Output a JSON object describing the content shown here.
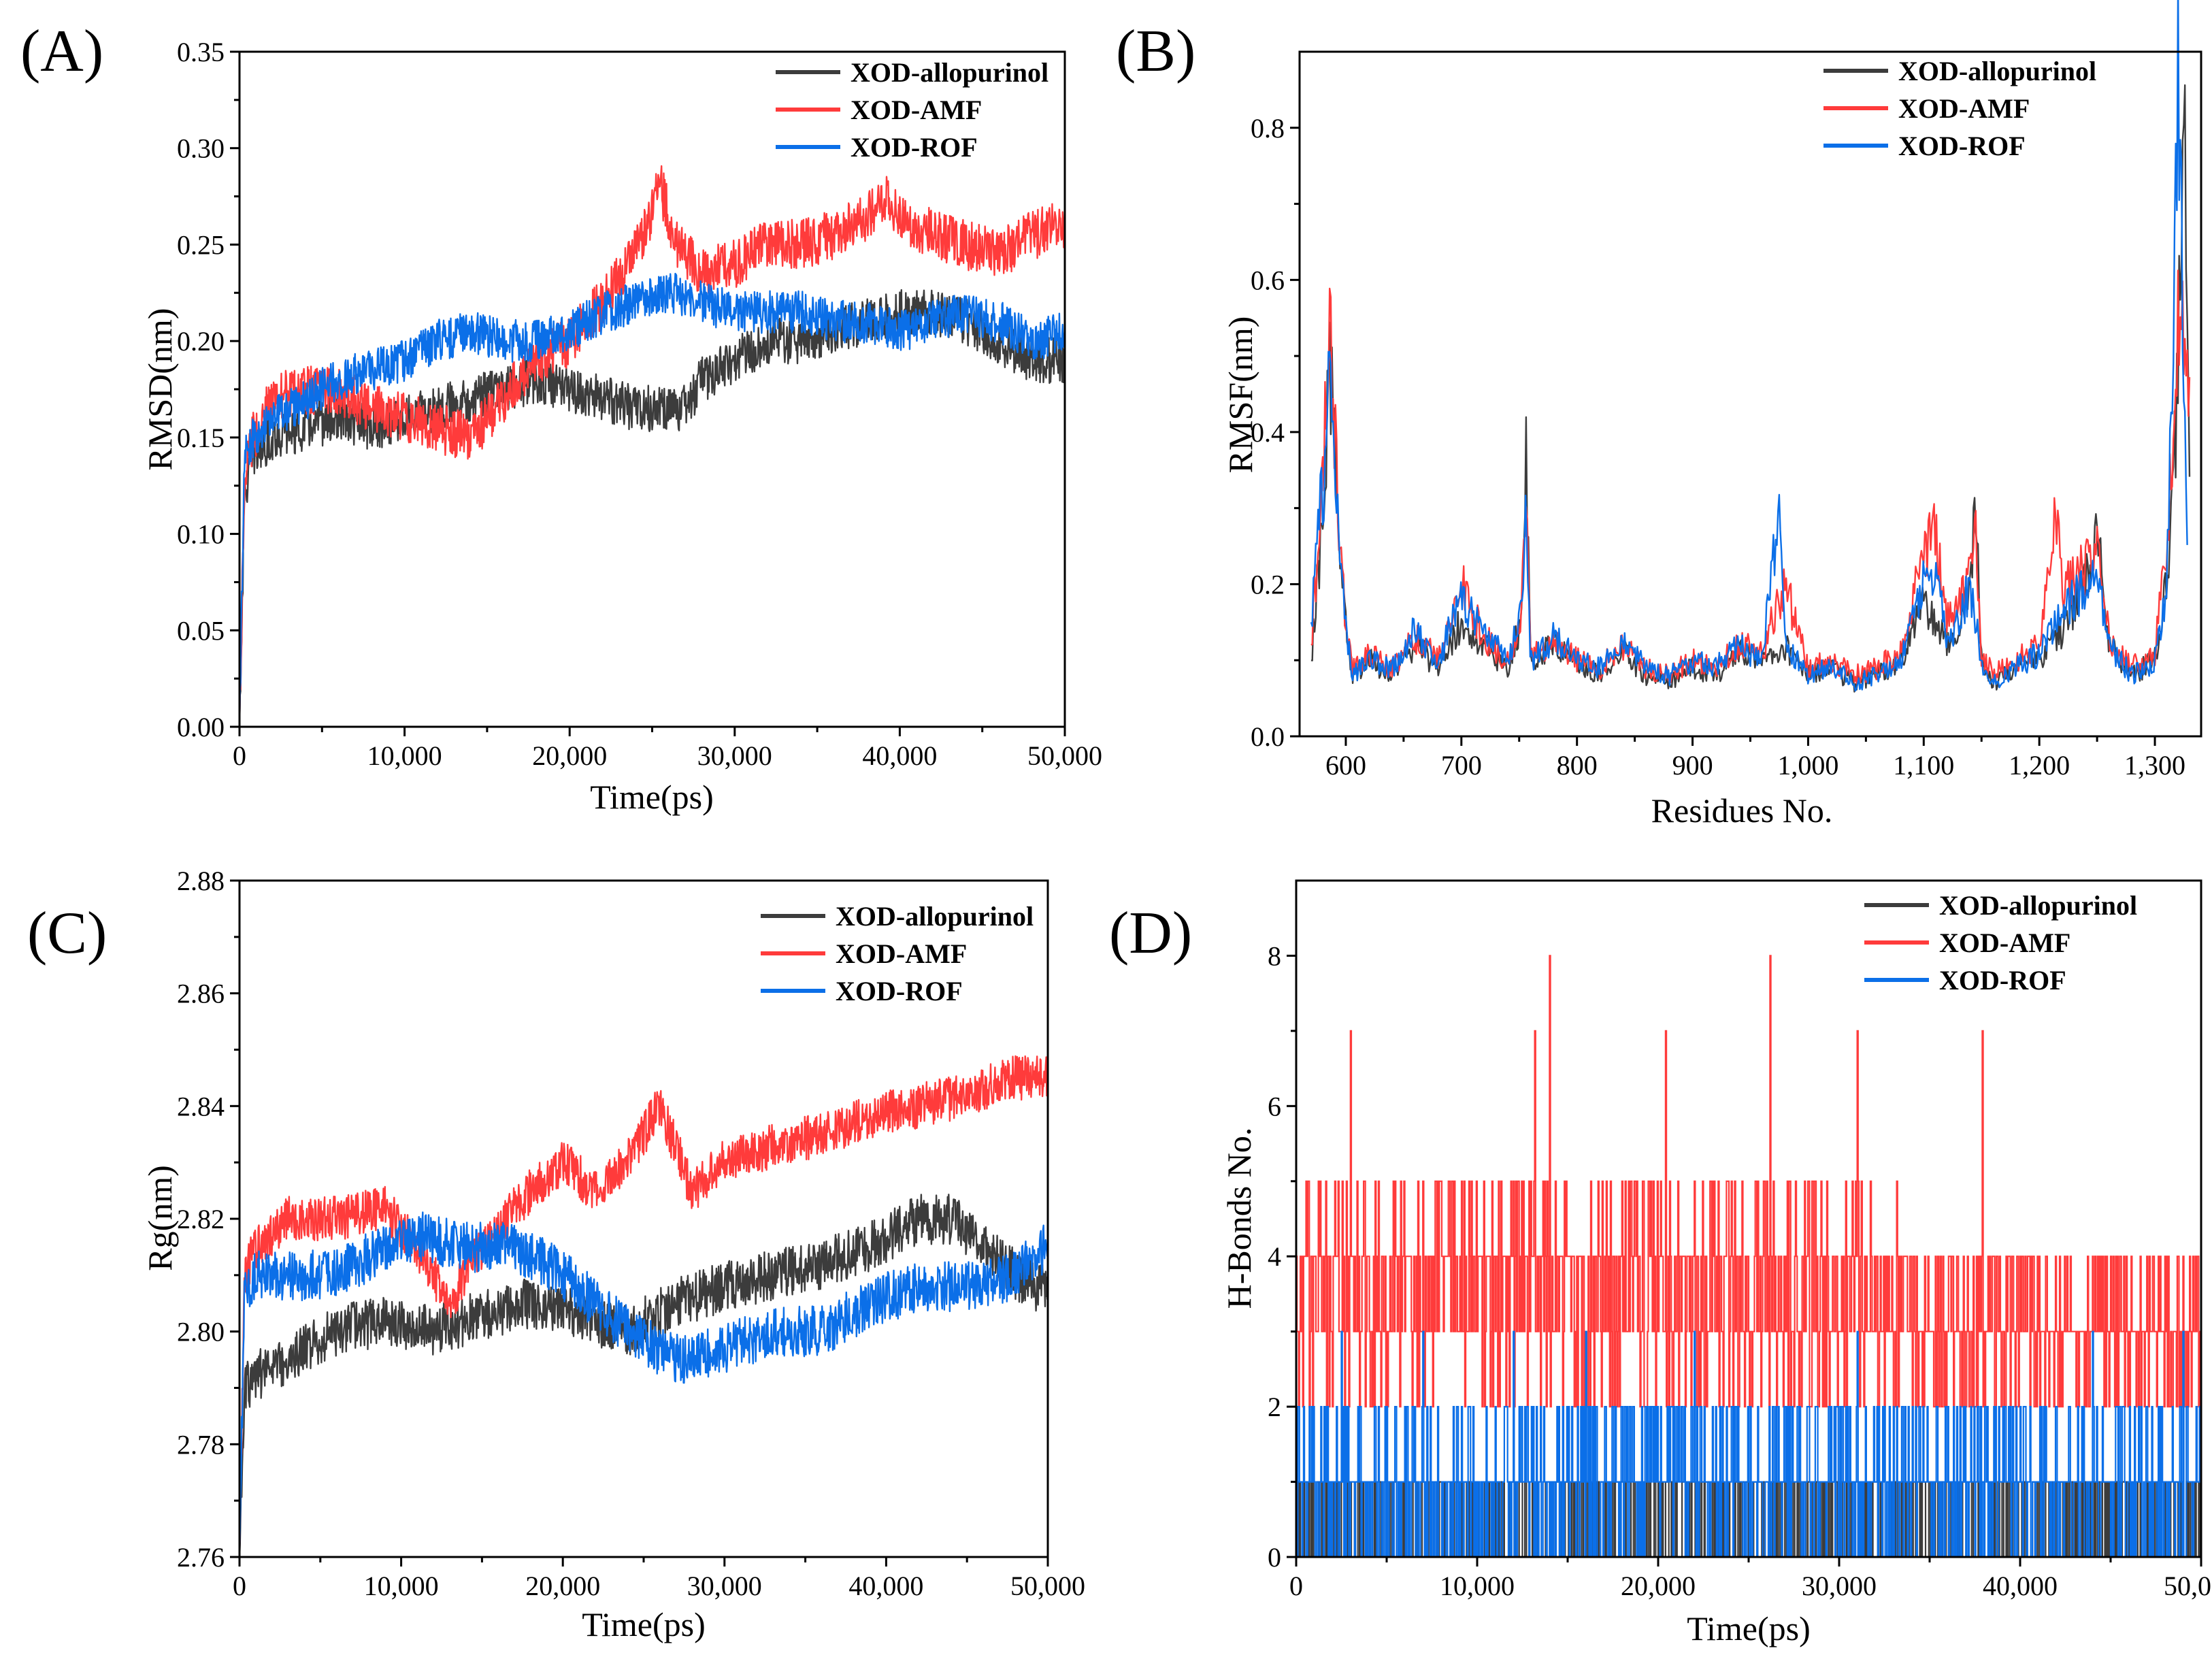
{
  "colors": {
    "XOD-allopurinol": "#3c3c3c",
    "XOD-AMF": "#ff3b3b",
    "XOD-ROF": "#0b6fe8"
  },
  "chart_data": [
    {
      "id": "A",
      "panel_label": "(A)",
      "type": "line",
      "xlabel": "Time(ps)",
      "ylabel": "RMSD(nm)",
      "xlim": [
        0,
        50000
      ],
      "ylim": [
        0.0,
        0.35
      ],
      "xticks": [
        0,
        10000,
        20000,
        30000,
        40000,
        50000
      ],
      "xtick_labels": [
        "0",
        "10,000",
        "20,000",
        "30,000",
        "40,000",
        "50,000"
      ],
      "yticks": [
        0,
        0.05,
        0.1,
        0.15,
        0.2,
        0.25,
        0.3,
        0.35
      ],
      "ytick_labels": [
        "0.00",
        "0.05",
        "0.10",
        "0.15",
        "0.20",
        "0.25",
        "0.30",
        "0.35"
      ],
      "legend": [
        "XOD-allopurinol",
        "XOD-AMF",
        "XOD-ROF"
      ],
      "series": [
        {
          "name": "XOD-allopurinol",
          "x": [
            0,
            300,
            800,
            2000,
            4000,
            6000,
            8000,
            10000,
            12000,
            14000,
            16000,
            18000,
            20000,
            22000,
            24000,
            26000,
            27000,
            28000,
            30000,
            32000,
            34000,
            36000,
            38000,
            40000,
            42000,
            44000,
            46000,
            48000,
            50000
          ],
          "values": [
            0.0,
            0.12,
            0.14,
            0.15,
            0.155,
            0.16,
            0.155,
            0.16,
            0.165,
            0.17,
            0.175,
            0.18,
            0.175,
            0.17,
            0.165,
            0.165,
            0.165,
            0.18,
            0.19,
            0.2,
            0.2,
            0.205,
            0.21,
            0.215,
            0.215,
            0.21,
            0.2,
            0.19,
            0.19
          ],
          "noise": 0.012
        },
        {
          "name": "XOD-AMF",
          "x": [
            0,
            300,
            800,
            2000,
            4000,
            6000,
            8000,
            10000,
            12000,
            14000,
            16000,
            18000,
            20000,
            22000,
            24000,
            25500,
            26500,
            28000,
            30000,
            32000,
            34000,
            36000,
            38000,
            39000,
            40000,
            42000,
            44000,
            46000,
            48000,
            50000
          ],
          "values": [
            0.0,
            0.13,
            0.15,
            0.17,
            0.175,
            0.175,
            0.165,
            0.16,
            0.155,
            0.15,
            0.17,
            0.19,
            0.2,
            0.22,
            0.245,
            0.28,
            0.25,
            0.235,
            0.24,
            0.25,
            0.25,
            0.255,
            0.265,
            0.275,
            0.265,
            0.255,
            0.25,
            0.245,
            0.255,
            0.26
          ],
          "noise": 0.013
        },
        {
          "name": "XOD-ROF",
          "x": [
            0,
            300,
            800,
            2000,
            4000,
            6000,
            8000,
            10000,
            12000,
            14000,
            16000,
            18000,
            20000,
            22000,
            24000,
            26000,
            28000,
            30000,
            32000,
            34000,
            36000,
            38000,
            40000,
            42000,
            44000,
            46000,
            48000,
            50000
          ],
          "values": [
            0.0,
            0.14,
            0.15,
            0.16,
            0.17,
            0.18,
            0.185,
            0.19,
            0.2,
            0.205,
            0.2,
            0.2,
            0.205,
            0.215,
            0.22,
            0.225,
            0.22,
            0.215,
            0.215,
            0.215,
            0.21,
            0.21,
            0.205,
            0.21,
            0.215,
            0.21,
            0.2,
            0.205
          ],
          "noise": 0.011
        }
      ]
    },
    {
      "id": "B",
      "panel_label": "(B)",
      "type": "line",
      "xlabel": "Residues No.",
      "ylabel": "RMSF(nm)",
      "xlim": [
        560,
        1340
      ],
      "ylim": [
        0.0,
        0.9
      ],
      "xticks": [
        600,
        700,
        800,
        900,
        1000,
        1100,
        1200,
        1300
      ],
      "xtick_labels": [
        "600",
        "700",
        "800",
        "900",
        "1,000",
        "1,100",
        "1,200",
        "1,300"
      ],
      "yticks": [
        0,
        0.2,
        0.4,
        0.6,
        0.8
      ],
      "ytick_labels": [
        "0.0",
        "0.2",
        "0.4",
        "0.6",
        "0.8"
      ],
      "legend": [
        "XOD-allopurinol",
        "XOD-AMF",
        "XOD-ROF"
      ],
      "series": [
        {
          "name": "XOD-allopurinol",
          "x": [
            570,
            578,
            582,
            586,
            590,
            594,
            600,
            606,
            620,
            640,
            660,
            680,
            700,
            720,
            740,
            752,
            756,
            760,
            780,
            800,
            820,
            840,
            860,
            880,
            900,
            920,
            940,
            960,
            980,
            1000,
            1020,
            1040,
            1060,
            1080,
            1100,
            1110,
            1120,
            1130,
            1140,
            1145,
            1150,
            1160,
            1180,
            1200,
            1220,
            1240,
            1250,
            1260,
            1280,
            1300,
            1310,
            1318,
            1322,
            1326,
            1330
          ],
          "values": [
            0.1,
            0.25,
            0.35,
            0.5,
            0.4,
            0.25,
            0.15,
            0.08,
            0.1,
            0.08,
            0.12,
            0.09,
            0.15,
            0.12,
            0.09,
            0.15,
            0.38,
            0.1,
            0.12,
            0.1,
            0.08,
            0.11,
            0.08,
            0.07,
            0.09,
            0.08,
            0.11,
            0.1,
            0.12,
            0.08,
            0.09,
            0.07,
            0.08,
            0.1,
            0.18,
            0.15,
            0.12,
            0.15,
            0.2,
            0.31,
            0.1,
            0.07,
            0.09,
            0.1,
            0.14,
            0.2,
            0.29,
            0.12,
            0.08,
            0.1,
            0.2,
            0.4,
            0.6,
            0.75,
            0.35
          ],
          "noise": 0.025
        },
        {
          "name": "XOD-AMF",
          "x": [
            570,
            578,
            582,
            586,
            590,
            594,
            600,
            606,
            620,
            640,
            660,
            680,
            700,
            720,
            740,
            752,
            756,
            760,
            780,
            800,
            820,
            840,
            860,
            880,
            900,
            920,
            940,
            960,
            980,
            1000,
            1020,
            1040,
            1060,
            1080,
            1100,
            1110,
            1120,
            1130,
            1140,
            1145,
            1150,
            1160,
            1180,
            1200,
            1215,
            1220,
            1240,
            1250,
            1260,
            1280,
            1300,
            1310,
            1318,
            1322,
            1326,
            1330
          ],
          "values": [
            0.12,
            0.3,
            0.4,
            0.56,
            0.42,
            0.28,
            0.15,
            0.09,
            0.11,
            0.09,
            0.13,
            0.1,
            0.2,
            0.13,
            0.1,
            0.16,
            0.32,
            0.11,
            0.12,
            0.1,
            0.09,
            0.12,
            0.09,
            0.08,
            0.1,
            0.09,
            0.12,
            0.11,
            0.2,
            0.09,
            0.1,
            0.08,
            0.09,
            0.11,
            0.24,
            0.27,
            0.15,
            0.17,
            0.22,
            0.27,
            0.11,
            0.08,
            0.1,
            0.12,
            0.3,
            0.2,
            0.22,
            0.25,
            0.13,
            0.09,
            0.11,
            0.25,
            0.44,
            0.62,
            0.45,
            0.44
          ],
          "noise": 0.025
        },
        {
          "name": "XOD-ROF",
          "x": [
            570,
            578,
            582,
            586,
            590,
            594,
            600,
            606,
            620,
            640,
            660,
            680,
            700,
            720,
            740,
            752,
            756,
            760,
            780,
            800,
            820,
            840,
            860,
            880,
            900,
            920,
            940,
            960,
            975,
            980,
            1000,
            1020,
            1040,
            1060,
            1080,
            1100,
            1110,
            1120,
            1130,
            1140,
            1150,
            1160,
            1180,
            1200,
            1220,
            1240,
            1250,
            1260,
            1280,
            1300,
            1310,
            1316,
            1320,
            1324,
            1328
          ],
          "values": [
            0.15,
            0.3,
            0.35,
            0.5,
            0.4,
            0.25,
            0.14,
            0.08,
            0.1,
            0.09,
            0.14,
            0.1,
            0.18,
            0.14,
            0.1,
            0.17,
            0.3,
            0.1,
            0.13,
            0.1,
            0.09,
            0.12,
            0.09,
            0.08,
            0.1,
            0.09,
            0.12,
            0.1,
            0.3,
            0.12,
            0.08,
            0.09,
            0.07,
            0.08,
            0.1,
            0.2,
            0.22,
            0.13,
            0.15,
            0.2,
            0.1,
            0.07,
            0.09,
            0.11,
            0.16,
            0.2,
            0.23,
            0.12,
            0.08,
            0.1,
            0.2,
            0.55,
            0.86,
            0.6,
            0.3
          ],
          "noise": 0.025
        }
      ]
    },
    {
      "id": "C",
      "panel_label": "(C)",
      "type": "line",
      "xlabel": "Time(ps)",
      "ylabel": "Rg(nm)",
      "xlim": [
        0,
        50000
      ],
      "ylim": [
        2.76,
        2.88
      ],
      "xticks": [
        0,
        10000,
        20000,
        30000,
        40000,
        50000
      ],
      "xtick_labels": [
        "0",
        "10,000",
        "20,000",
        "30,000",
        "40,000",
        "50,000"
      ],
      "yticks": [
        2.76,
        2.78,
        2.8,
        2.82,
        2.84,
        2.86,
        2.88
      ],
      "ytick_labels": [
        "2.76",
        "2.78",
        "2.80",
        "2.82",
        "2.84",
        "2.86",
        "2.88"
      ],
      "legend": [
        "XOD-allopurinol",
        "XOD-AMF",
        "XOD-ROF"
      ],
      "series": [
        {
          "name": "XOD-allopurinol",
          "x": [
            0,
            300,
            1000,
            3000,
            6000,
            9000,
            12000,
            15000,
            18000,
            21000,
            24000,
            27000,
            30000,
            33000,
            36000,
            39000,
            42000,
            44000,
            46000,
            48000,
            50000
          ],
          "values": [
            2.76,
            2.79,
            2.792,
            2.795,
            2.8,
            2.802,
            2.8,
            2.803,
            2.805,
            2.803,
            2.8,
            2.805,
            2.808,
            2.81,
            2.812,
            2.815,
            2.82,
            2.82,
            2.815,
            2.81,
            2.807
          ],
          "noise": 0.0045
        },
        {
          "name": "XOD-AMF",
          "x": [
            0,
            300,
            1000,
            3000,
            6000,
            9000,
            11000,
            13000,
            15000,
            18000,
            20000,
            22000,
            24000,
            26000,
            28000,
            30000,
            33000,
            36000,
            39000,
            42000,
            45000,
            48000,
            50000
          ],
          "values": [
            2.76,
            2.81,
            2.815,
            2.82,
            2.82,
            2.822,
            2.815,
            2.805,
            2.815,
            2.825,
            2.83,
            2.825,
            2.83,
            2.84,
            2.825,
            2.83,
            2.833,
            2.835,
            2.838,
            2.84,
            2.842,
            2.845,
            2.845
          ],
          "noise": 0.004
        },
        {
          "name": "XOD-ROF",
          "x": [
            0,
            300,
            1000,
            3000,
            6000,
            9000,
            11000,
            14000,
            17000,
            20000,
            22000,
            24000,
            27000,
            30000,
            33000,
            36000,
            39000,
            42000,
            45000,
            48000,
            50000
          ],
          "values": [
            2.76,
            2.808,
            2.81,
            2.81,
            2.81,
            2.815,
            2.817,
            2.815,
            2.815,
            2.81,
            2.805,
            2.8,
            2.795,
            2.797,
            2.8,
            2.8,
            2.805,
            2.808,
            2.808,
            2.81,
            2.815
          ],
          "noise": 0.0045
        }
      ]
    },
    {
      "id": "D",
      "panel_label": "(D)",
      "type": "line",
      "xlabel": "Time(ps)",
      "ylabel": "H-Bonds No.",
      "xlim": [
        0,
        50000
      ],
      "ylim": [
        0,
        9
      ],
      "xticks": [
        0,
        10000,
        20000,
        30000,
        40000,
        50000
      ],
      "xtick_labels": [
        "0",
        "10,000",
        "20,000",
        "30,000",
        "40,000",
        "50,000"
      ],
      "yticks": [
        0,
        2,
        4,
        6,
        8
      ],
      "ytick_labels": [
        "0",
        "2",
        "4",
        "6",
        "8"
      ],
      "legend": [
        "XOD-allopurinol",
        "XOD-AMF",
        "XOD-ROF"
      ],
      "series": [
        {
          "name": "XOD-allopurinol",
          "mode": "step-band",
          "x": [
            0,
            50000
          ],
          "low": [
            0,
            0
          ],
          "high": [
            1,
            1
          ]
        },
        {
          "name": "XOD-AMF",
          "mode": "step-band",
          "x": [
            0,
            10000,
            20000,
            30000,
            40000,
            50000
          ],
          "low": [
            2,
            2,
            2,
            2,
            2,
            2
          ],
          "high": [
            5,
            5,
            5,
            5,
            4,
            4
          ],
          "peaks": [
            [
              14000,
              8
            ],
            [
              26200,
              8
            ],
            [
              3000,
              7
            ],
            [
              13200,
              7
            ],
            [
              20400,
              7
            ],
            [
              31000,
              7
            ],
            [
              37900,
              7
            ]
          ]
        },
        {
          "name": "XOD-ROF",
          "mode": "step-band",
          "x": [
            0,
            50000
          ],
          "low": [
            0,
            0
          ],
          "high": [
            2,
            2
          ],
          "peaks": [
            [
              2500,
              3
            ],
            [
              7000,
              3
            ],
            [
              12000,
              3
            ],
            [
              16000,
              3
            ],
            [
              22000,
              3
            ],
            [
              31000,
              3
            ],
            [
              44000,
              3
            ],
            [
              49000,
              3
            ]
          ]
        }
      ]
    }
  ]
}
